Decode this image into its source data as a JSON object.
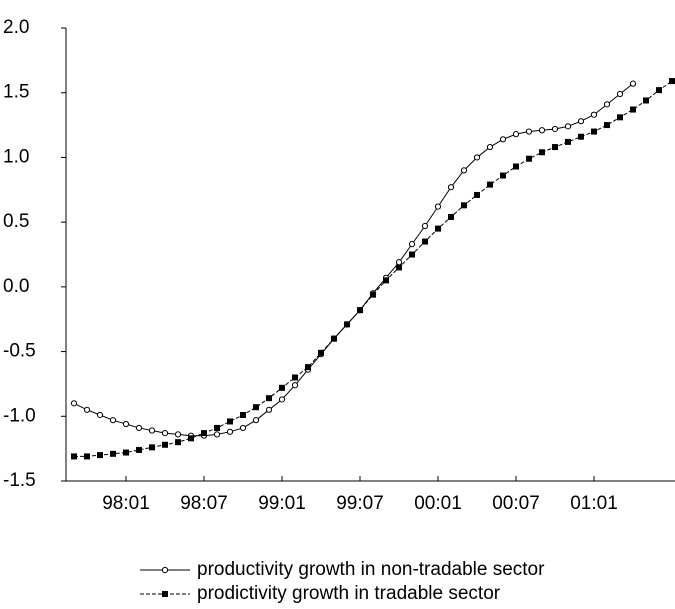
{
  "chart_data": {
    "type": "line",
    "categories": [
      null,
      null,
      null,
      null,
      "98:01",
      null,
      null,
      null,
      null,
      null,
      "98:07",
      null,
      null,
      null,
      null,
      null,
      "99:01",
      null,
      null,
      null,
      null,
      null,
      "99:07",
      null,
      null,
      null,
      null,
      null,
      "00:01",
      null,
      null,
      null,
      null,
      null,
      "00:07",
      null,
      null,
      null,
      null,
      null,
      "01:01",
      null,
      null,
      null,
      null,
      null,
      null
    ],
    "series": [
      {
        "name": "productivity growth in non-tradable sector",
        "color": "#000000",
        "marker": "open-circle",
        "dash": "solid",
        "values": [
          -0.9,
          -0.95,
          -0.99,
          -1.03,
          -1.06,
          -1.09,
          -1.11,
          -1.13,
          -1.14,
          -1.15,
          -1.15,
          -1.14,
          -1.12,
          -1.09,
          -1.03,
          -0.95,
          -0.87,
          -0.76,
          -0.64,
          -0.52,
          -0.4,
          -0.29,
          -0.18,
          -0.05,
          0.07,
          0.19,
          0.33,
          0.47,
          0.62,
          0.77,
          0.9,
          1.0,
          1.08,
          1.14,
          1.18,
          1.2,
          1.21,
          1.22,
          1.24,
          1.28,
          1.33,
          1.41,
          1.49,
          1.57,
          null,
          null,
          null
        ]
      },
      {
        "name": "prodictivity growth in tradable sector",
        "color": "#000000",
        "marker": "filled-square",
        "dash": "dashed",
        "values": [
          -1.31,
          -1.31,
          -1.3,
          -1.29,
          -1.28,
          -1.26,
          -1.24,
          -1.22,
          -1.2,
          -1.17,
          -1.13,
          -1.09,
          -1.04,
          -0.99,
          -0.93,
          -0.86,
          -0.78,
          -0.7,
          -0.62,
          -0.51,
          -0.4,
          -0.29,
          -0.18,
          -0.06,
          0.05,
          0.15,
          0.25,
          0.35,
          0.45,
          0.54,
          0.63,
          0.71,
          0.79,
          0.86,
          0.93,
          0.99,
          1.04,
          1.08,
          1.12,
          1.16,
          1.2,
          1.25,
          1.31,
          1.37,
          1.44,
          1.52,
          1.59
        ]
      }
    ],
    "ylim": [
      -1.5,
      2.0
    ],
    "yticks": [
      {
        "value": -1.5,
        "label": "-1.5"
      },
      {
        "value": -1,
        "label": "-1.0"
      },
      -0.5,
      {
        "value": 0,
        "label": "0.0"
      },
      0.5,
      {
        "value": 1,
        "label": "1.0"
      },
      1.5,
      {
        "value": 2,
        "label": "2.0"
      }
    ],
    "legend": "bottom"
  }
}
